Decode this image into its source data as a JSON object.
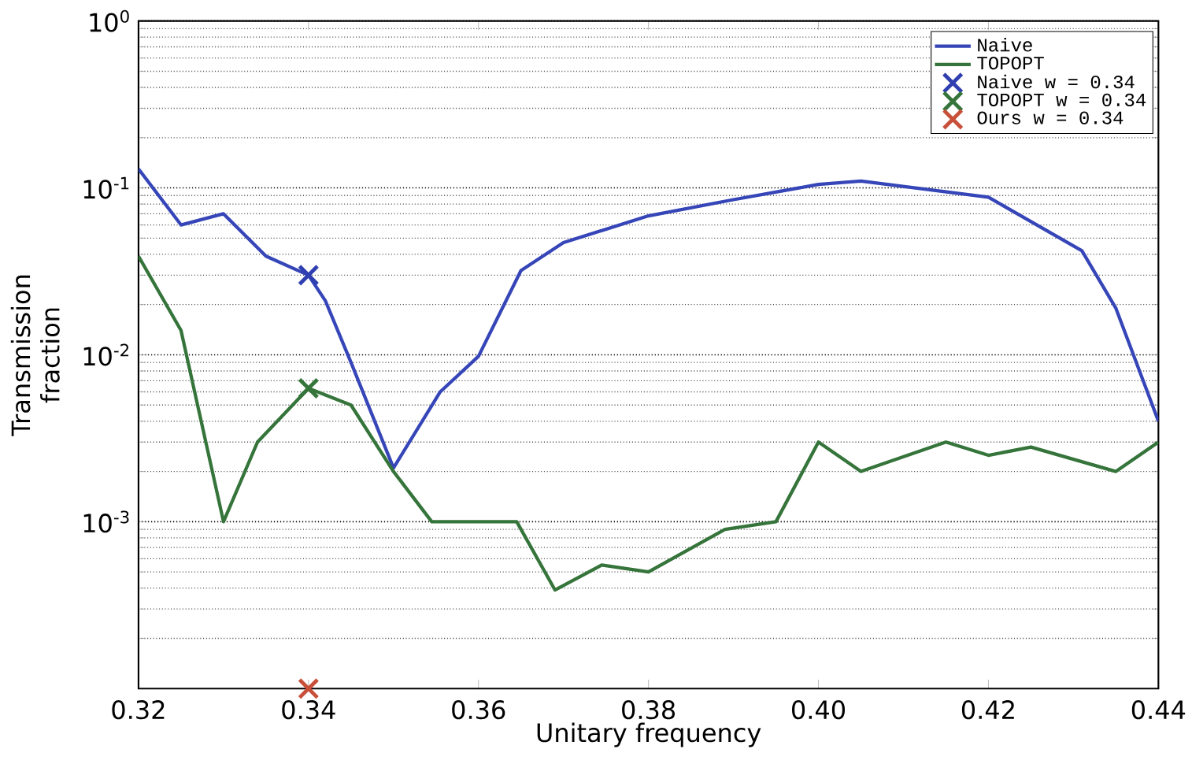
{
  "chart_data": {
    "type": "line",
    "xlabel": "Unitary frequency",
    "ylabel": "Transmission fraction",
    "xlim": [
      0.32,
      0.44
    ],
    "xticks": [
      0.32,
      0.34,
      0.36,
      0.38,
      {
        "value": 0.4,
        "label": "0.40"
      },
      0.42,
      0.44
    ],
    "ylim": [
      0.0001,
      1
    ],
    "yticks": [
      {
        "value": 1,
        "label": "10$^{0}$"
      },
      {
        "value": 0.1,
        "label": "10$^{-1}$"
      },
      {
        "value": 0.01,
        "label": "10$^{-2}$"
      },
      {
        "value": 0.001,
        "label": "10$^{-3}$"
      }
    ],
    "log": "y",
    "grid": "y",
    "legend": "top right",
    "series": [
      {
        "name": "Naive",
        "marker": "none",
        "color": "#3646b8",
        "x": [
          0.32,
          0.325,
          0.33,
          0.335,
          0.34,
          0.342,
          0.345,
          0.35,
          0.3555,
          0.36,
          0.365,
          0.37,
          0.38,
          0.39,
          0.4,
          0.405,
          0.42,
          0.431,
          0.435,
          0.44
        ],
        "values": [
          0.13,
          0.06,
          0.07,
          0.039,
          0.03,
          0.021,
          0.009,
          0.0021,
          0.006,
          0.0098,
          0.032,
          0.047,
          0.068,
          0.085,
          0.105,
          0.11,
          0.088,
          0.042,
          0.019,
          0.004
        ]
      },
      {
        "name": "TOPOPT",
        "marker": "none",
        "color": "#35743a",
        "x": [
          0.32,
          0.325,
          0.33,
          0.334,
          0.34,
          0.345,
          0.35,
          0.3545,
          0.3645,
          0.369,
          0.3745,
          0.38,
          0.389,
          0.395,
          0.4,
          0.405,
          0.415,
          0.42,
          0.425,
          0.435,
          0.44
        ],
        "values": [
          0.039,
          0.014,
          0.001,
          0.003,
          0.0063,
          0.005,
          0.002,
          0.001,
          0.001,
          0.00039,
          0.00055,
          0.0005,
          0.0009,
          0.001,
          0.003,
          0.002,
          0.003,
          0.0025,
          0.0028,
          0.002,
          0.003
        ]
      },
      {
        "name": "Naive w = 0.34",
        "type": "scatter",
        "marker": "cross",
        "color": "#2f3fb0",
        "x": [
          0.34
        ],
        "values": [
          0.03
        ]
      },
      {
        "name": "TOPOPT w = 0.34",
        "type": "scatter",
        "marker": "cross",
        "color": "#35743a",
        "x": [
          0.34
        ],
        "values": [
          0.0063
        ]
      },
      {
        "name": "Ours w = 0.34",
        "type": "scatter",
        "marker": "cross",
        "color": "#c8503a",
        "x": [
          0.34
        ],
        "values": [
          0.0001
        ]
      }
    ]
  }
}
